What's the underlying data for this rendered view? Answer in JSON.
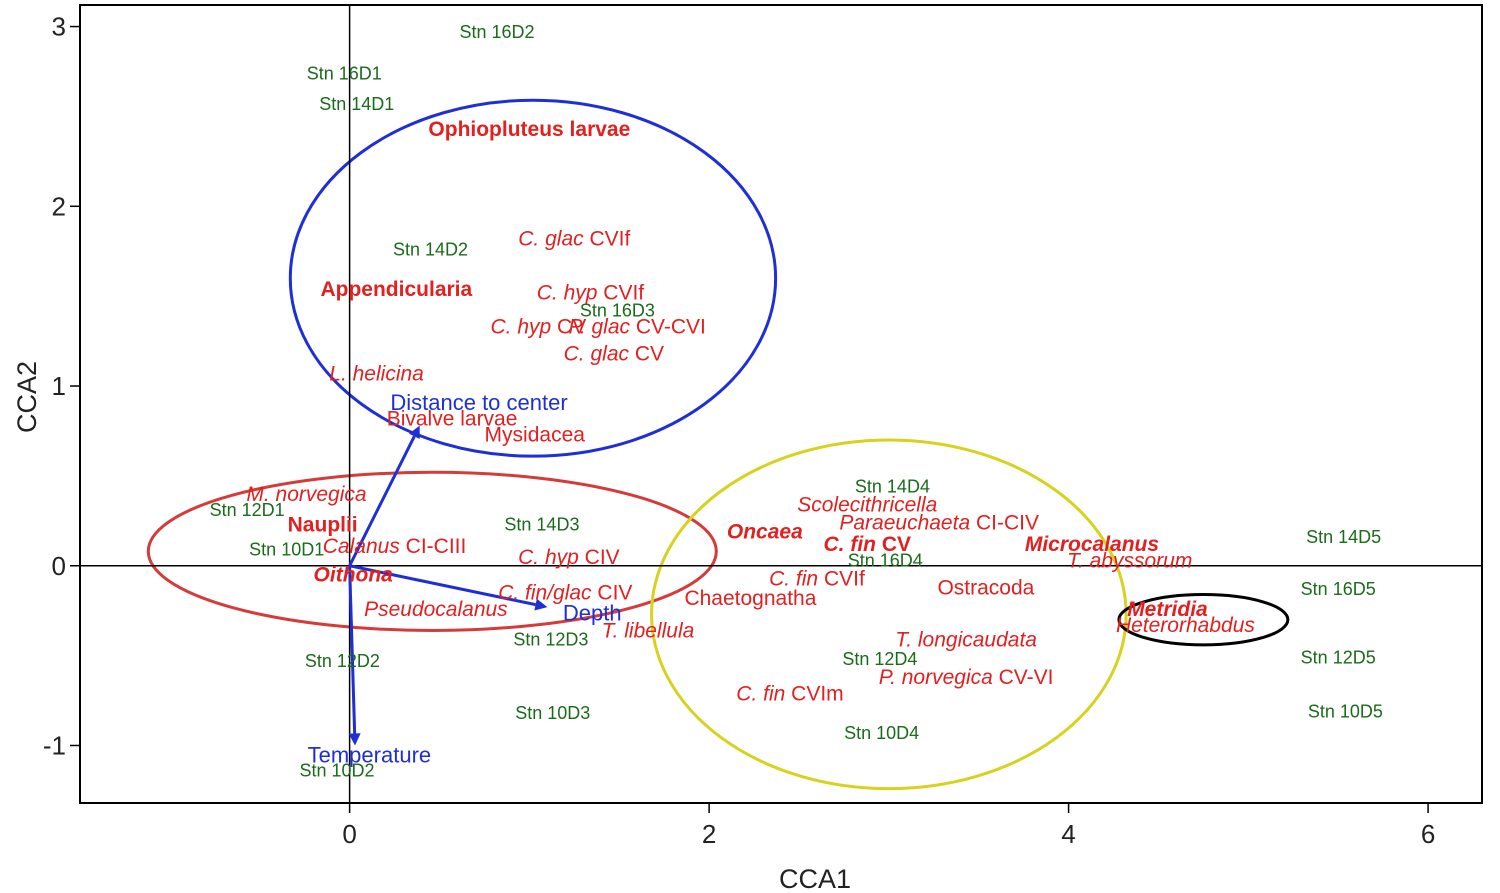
{
  "chart_data": {
    "type": "scatter",
    "title": "",
    "xlabel": "CCA1",
    "ylabel": "CCA2",
    "xlim": [
      -1.5,
      6.3
    ],
    "ylim": [
      -1.32,
      3.12
    ],
    "x_ticks": [
      0,
      2,
      4,
      6
    ],
    "y_ticks": [
      -1,
      0,
      1,
      2,
      3
    ],
    "x_tick_labels": [
      "0",
      "2",
      "4",
      "6"
    ],
    "y_tick_labels": [
      "-1",
      "0",
      "1",
      "2",
      "3"
    ],
    "grid": false,
    "reference_lines": {
      "x": 0,
      "y": 0
    },
    "colors": {
      "station": "#1a6b1a",
      "species": "#e32020",
      "vector": "#1f2fd6",
      "axis": "#000000"
    },
    "stations": [
      {
        "label": "Stn 16D2",
        "x": 0.82,
        "y": 2.97
      },
      {
        "label": "Stn 16D1",
        "x": -0.03,
        "y": 2.74
      },
      {
        "label": "Stn 14D1",
        "x": 0.04,
        "y": 2.57
      },
      {
        "label": "Stn 14D2",
        "x": 0.45,
        "y": 1.76
      },
      {
        "label": "Stn 16D3",
        "x": 1.49,
        "y": 1.42
      },
      {
        "label": "Stn 14D4",
        "x": 3.02,
        "y": 0.44
      },
      {
        "label": "Stn 12D1",
        "x": -0.57,
        "y": 0.31
      },
      {
        "label": "Stn 14D3",
        "x": 1.07,
        "y": 0.23
      },
      {
        "label": "Stn 10D1",
        "x": -0.35,
        "y": 0.09
      },
      {
        "label": "Stn 16D4",
        "x": 2.98,
        "y": 0.03
      },
      {
        "label": "Stn 14D5",
        "x": 5.53,
        "y": 0.16
      },
      {
        "label": "Stn 16D5",
        "x": 5.5,
        "y": -0.13
      },
      {
        "label": "Stn 12D3",
        "x": 1.12,
        "y": -0.41
      },
      {
        "label": "Stn 12D2",
        "x": -0.04,
        "y": -0.53
      },
      {
        "label": "Stn 12D4",
        "x": 2.95,
        "y": -0.52
      },
      {
        "label": "Stn 12D5",
        "x": 5.5,
        "y": -0.51
      },
      {
        "label": "Stn 10D3",
        "x": 1.13,
        "y": -0.82
      },
      {
        "label": "Stn 10D5",
        "x": 5.54,
        "y": -0.81
      },
      {
        "label": "Stn 10D4",
        "x": 2.96,
        "y": -0.93
      },
      {
        "label": "Stn 10D2",
        "x": -0.07,
        "y": -1.14
      }
    ],
    "species": [
      {
        "label": "Ophiopluteus larvae",
        "style": "bold",
        "x": 1.0,
        "y": 2.43
      },
      {
        "label": "C. glac",
        "suffix": " CVIf",
        "style": "italic",
        "x": 1.25,
        "y": 1.82
      },
      {
        "label": "Appendicularia",
        "style": "bold",
        "x": 0.26,
        "y": 1.54
      },
      {
        "label": "C. hyp",
        "suffix": " CVIf",
        "style": "italic",
        "x": 1.34,
        "y": 1.52
      },
      {
        "label": "C. hyp",
        "suffix": " CV",
        "style": "italic",
        "x": 1.05,
        "y": 1.33
      },
      {
        "label": "P. glac",
        "suffix": " CV-CVI",
        "style": "italic",
        "x": 1.6,
        "y": 1.33
      },
      {
        "label": "C. glac",
        "suffix": " CV",
        "style": "italic",
        "x": 1.47,
        "y": 1.18
      },
      {
        "label": "L. helicina",
        "style": "italic",
        "x": 0.15,
        "y": 1.07
      },
      {
        "label": "Bivalve larvae",
        "style": "normal",
        "x": 0.57,
        "y": 0.82
      },
      {
        "label": "Mysidacea",
        "style": "normal",
        "x": 1.03,
        "y": 0.73
      },
      {
        "label": "M. norvegica",
        "style": "italic",
        "x": -0.24,
        "y": 0.4
      },
      {
        "label": "Scolecithricella",
        "style": "italic",
        "x": 2.88,
        "y": 0.34
      },
      {
        "label": "Nauplii",
        "style": "bold",
        "x": -0.15,
        "y": 0.23
      },
      {
        "label": "Paraeuchaeta",
        "suffix": " CI-CIV",
        "style": "italic",
        "x": 3.28,
        "y": 0.24
      },
      {
        "label": "Oncaea",
        "style": "bold-italic",
        "x": 2.31,
        "y": 0.19
      },
      {
        "label": "Calanus",
        "suffix": " CI-CIII",
        "style": "italic",
        "x": 0.25,
        "y": 0.11
      },
      {
        "label": "C. fin",
        "suffix": " CV",
        "style": "bold-italic",
        "x": 2.88,
        "y": 0.12
      },
      {
        "label": "Microcalanus",
        "style": "bold-italic",
        "x": 4.13,
        "y": 0.12
      },
      {
        "label": "C. hyp",
        "suffix": " CIV",
        "style": "italic",
        "x": 1.22,
        "y": 0.05
      },
      {
        "label": "T. abyssorum",
        "style": "italic",
        "x": 4.34,
        "y": 0.03
      },
      {
        "label": "Oithona",
        "style": "bold-italic",
        "x": 0.02,
        "y": -0.05
      },
      {
        "label": "C. fin",
        "suffix": " CVIf",
        "style": "italic",
        "x": 2.6,
        "y": -0.07
      },
      {
        "label": "Ostracoda",
        "style": "normal",
        "x": 3.54,
        "y": -0.12
      },
      {
        "label": "C. fin/glac",
        "suffix": " CIV",
        "style": "italic",
        "x": 1.2,
        "y": -0.15
      },
      {
        "label": "Chaetognatha",
        "style": "normal",
        "x": 2.23,
        "y": -0.18
      },
      {
        "label": "Pseudocalanus",
        "style": "italic",
        "x": 0.48,
        "y": -0.24
      },
      {
        "label": "Metridia",
        "style": "bold-italic",
        "x": 4.55,
        "y": -0.24
      },
      {
        "label": "Heterorhabdus",
        "style": "italic",
        "x": 4.65,
        "y": -0.33
      },
      {
        "label": "T. libellula",
        "style": "italic",
        "x": 1.66,
        "y": -0.36
      },
      {
        "label": "T. longicaudata",
        "style": "italic",
        "x": 3.43,
        "y": -0.41
      },
      {
        "label": "P. norvegica",
        "suffix": " CV-VI",
        "style": "italic",
        "x": 3.43,
        "y": -0.62
      },
      {
        "label": "C. fin",
        "suffix": " CVIm",
        "style": "italic",
        "x": 2.45,
        "y": -0.71
      }
    ],
    "vectors": [
      {
        "label": "Distance to center",
        "x": 0.39,
        "y": 0.78,
        "label_x": 0.72,
        "label_y": 0.91
      },
      {
        "label": "Depth",
        "x": 1.1,
        "y": -0.23,
        "label_x": 1.35,
        "label_y": -0.26
      },
      {
        "label": "Temperature",
        "x": 0.03,
        "y": -1.0,
        "label_x": 0.11,
        "label_y": -1.05
      }
    ],
    "groups": [
      {
        "name": "blue-group",
        "color": "#1f2fd6",
        "cx": 1.02,
        "cy": 1.6,
        "rx": 1.35,
        "ry": 0.99
      },
      {
        "name": "red-group",
        "color": "#d63b3b",
        "cx": 0.46,
        "cy": 0.08,
        "rx": 1.58,
        "ry": 0.44
      },
      {
        "name": "yellow-group",
        "color": "#d8d21f",
        "cx": 3.0,
        "cy": -0.27,
        "rx": 1.32,
        "ry": 0.97
      },
      {
        "name": "black-group",
        "color": "#000000",
        "cx": 4.75,
        "cy": -0.3,
        "rx": 0.47,
        "ry": 0.14
      }
    ]
  }
}
